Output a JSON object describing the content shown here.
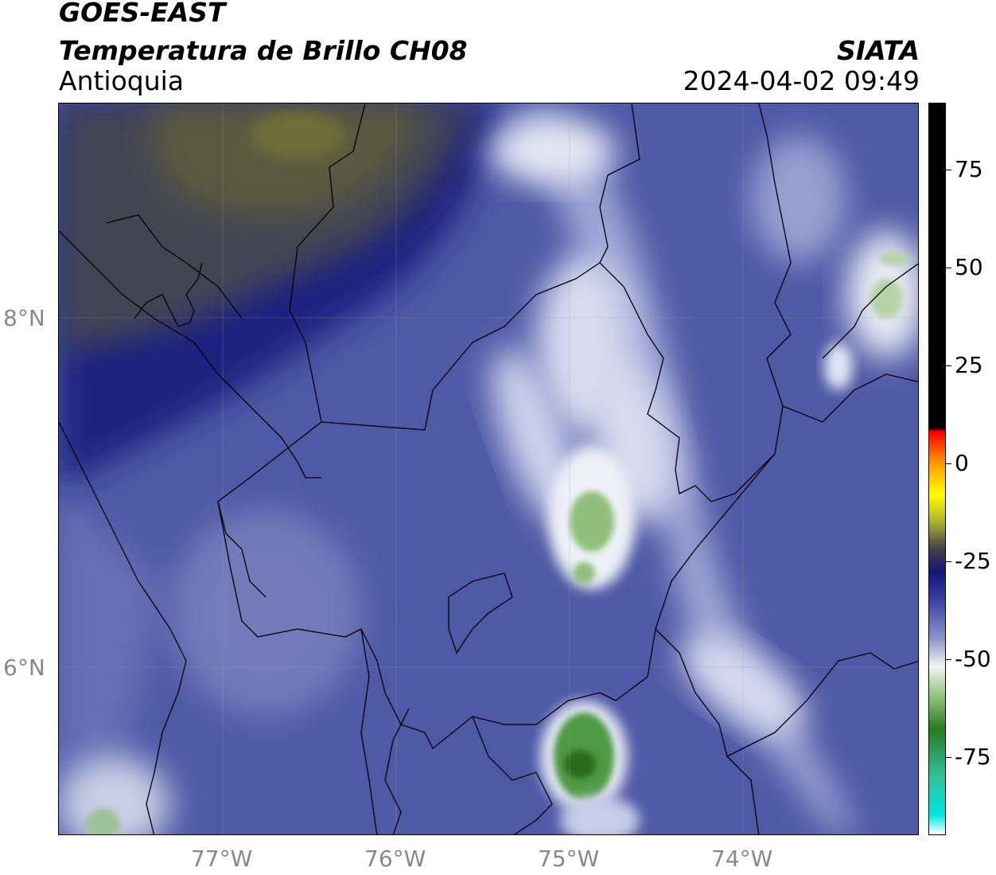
{
  "header": {
    "line1": "GOES-EAST",
    "line2": "Temperatura de Brillo CH08",
    "line3": "Antioquia",
    "agency": "SIATA",
    "timestamp": "2024-04-02 09:49"
  },
  "map": {
    "latitude_labels": [
      {
        "label": "8°N",
        "value": 8
      },
      {
        "label": "6°N",
        "value": 6
      }
    ],
    "longitude_labels": [
      {
        "label": "77°W",
        "value": -77
      },
      {
        "label": "76°W",
        "value": -76
      },
      {
        "label": "75°W",
        "value": -75
      },
      {
        "label": "74°W",
        "value": -74
      }
    ],
    "colors": {
      "background_blue": "#4f5aa6",
      "dark_blue": "#1a2180",
      "olive": "#5a5a40",
      "light": "#e8ecf4",
      "green": "#2e7d32"
    }
  },
  "colorbar": {
    "range": [
      -95,
      92
    ],
    "ticks": [
      {
        "label": "75",
        "value": 75
      },
      {
        "label": "50",
        "value": 50
      },
      {
        "label": "25",
        "value": 25
      },
      {
        "label": "0",
        "value": 0
      },
      {
        "label": "-25",
        "value": -25
      },
      {
        "label": "-50",
        "value": -50
      },
      {
        "label": "-75",
        "value": -75
      }
    ],
    "stops": [
      {
        "value": -95,
        "color": "#ffffff"
      },
      {
        "value": -90,
        "color": "#00e5e0"
      },
      {
        "value": -80,
        "color": "#33c09a"
      },
      {
        "value": -68,
        "color": "#2a7a20"
      },
      {
        "value": -60,
        "color": "#8fbf7a"
      },
      {
        "value": -52,
        "color": "#f2f4f2"
      },
      {
        "value": -45,
        "color": "#8e95c8"
      },
      {
        "value": -35,
        "color": "#3a43a0"
      },
      {
        "value": -28,
        "color": "#12157a"
      },
      {
        "value": -22,
        "color": "#404048"
      },
      {
        "value": -15,
        "color": "#b0b030"
      },
      {
        "value": -8,
        "color": "#ffff00"
      },
      {
        "value": 0,
        "color": "#ff9900"
      },
      {
        "value": 8,
        "color": "#ff0000"
      },
      {
        "value": 9,
        "color": "#000000"
      },
      {
        "value": 92,
        "color": "#000000"
      }
    ]
  }
}
